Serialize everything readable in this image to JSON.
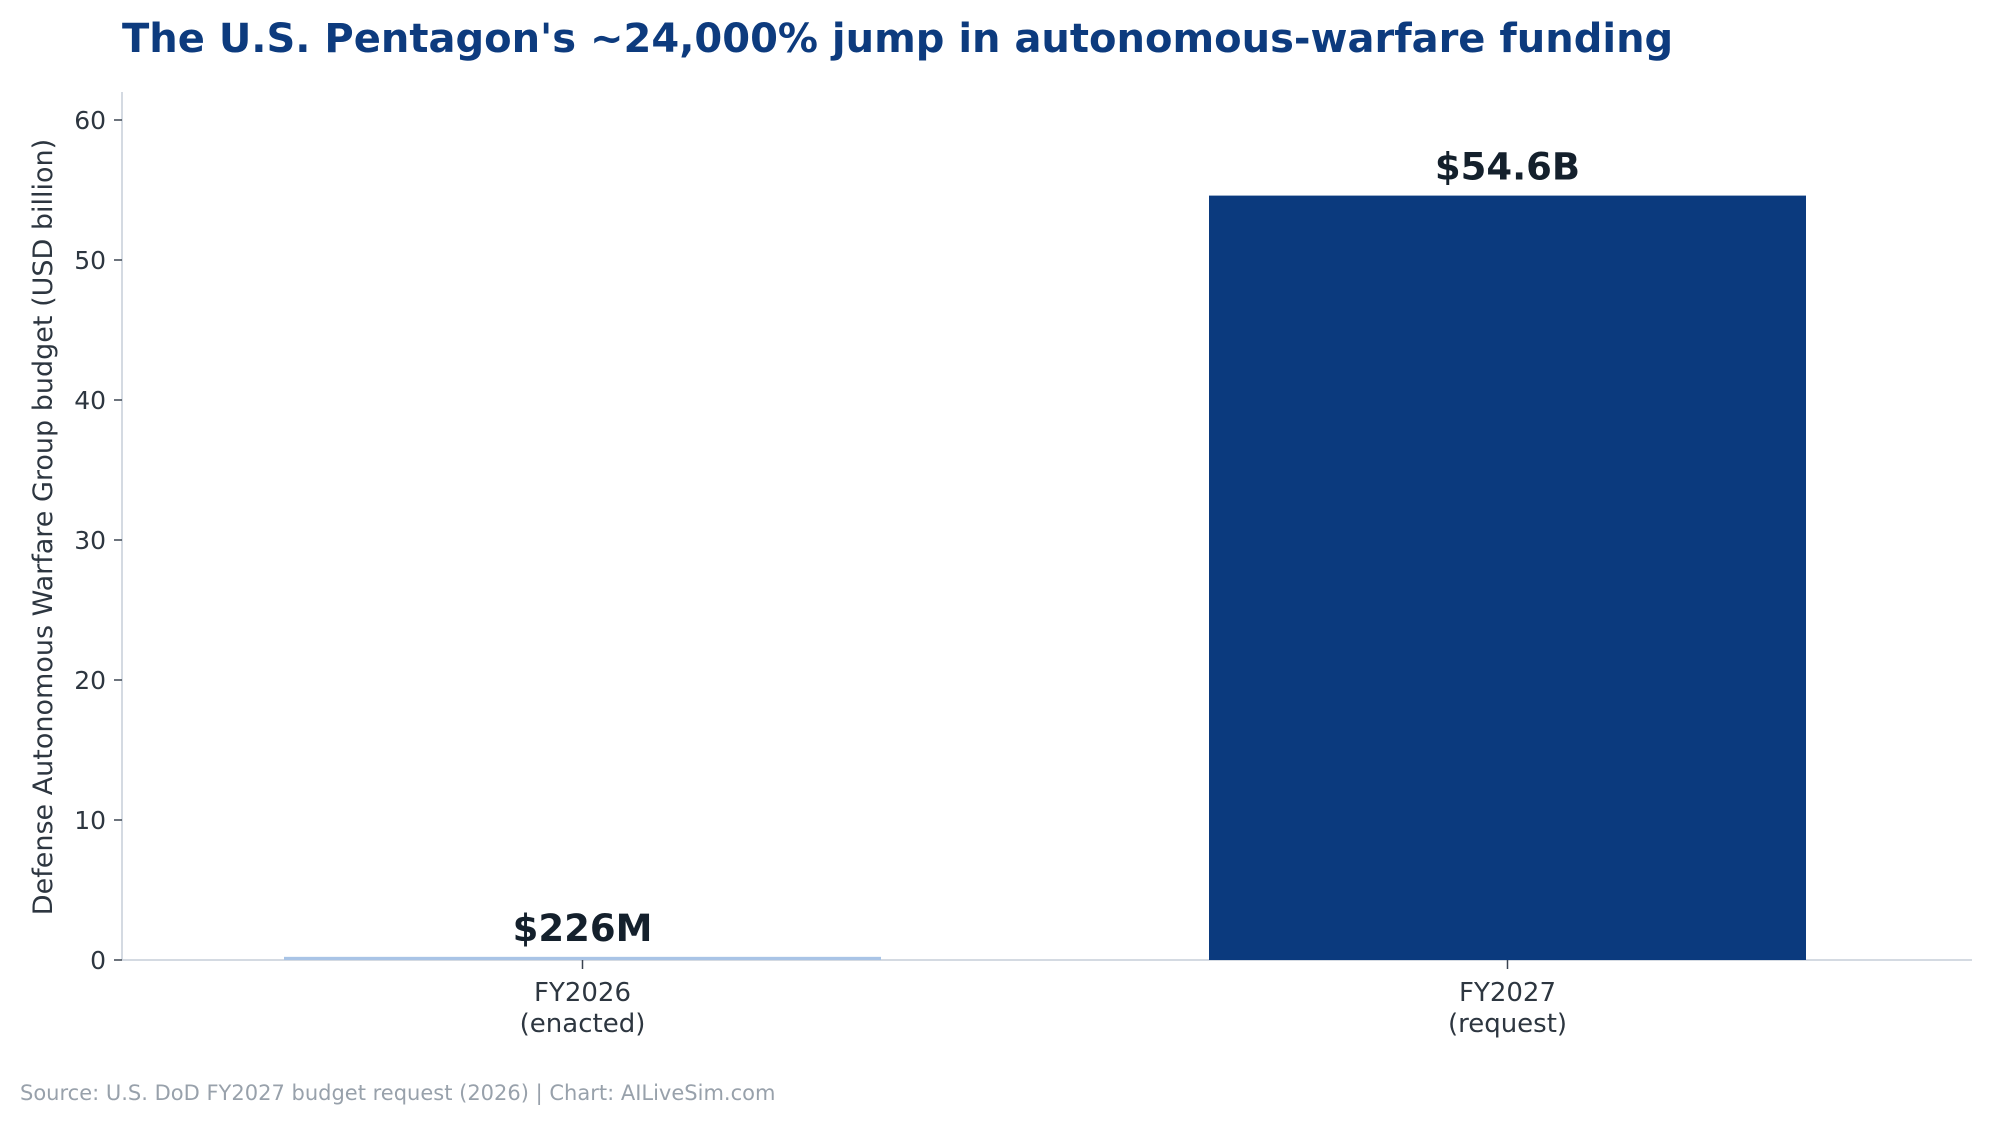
{
  "chart_data": {
    "type": "bar",
    "title": "The U.S. Pentagon's ~24,000% jump in autonomous-warfare funding",
    "ylabel": "Defense Autonomous Warfare Group budget (USD billion)",
    "xlabel": "",
    "categories": [
      [
        "FY2026",
        "(enacted)"
      ],
      [
        "FY2027",
        "(request)"
      ]
    ],
    "values": [
      0.226,
      54.6
    ],
    "data_labels": [
      "$226M",
      "$54.6B"
    ],
    "ylim": [
      0,
      62
    ],
    "yticks": [
      0,
      10,
      20,
      30,
      40,
      50,
      60
    ],
    "grid": false,
    "legend": "none"
  },
  "source_note": "Source: U.S. DoD FY2027 budget request (2026)  |  Chart: AILiveSim.com",
  "colors": {
    "title": "#0d3b7e",
    "bar_fy2026": "#a9c4e6",
    "bar_fy2027": "#0b3a7e",
    "axis": "#c6ced8",
    "text": "#2d3640",
    "data_label": "#14202c",
    "source": "#98a1ab"
  }
}
